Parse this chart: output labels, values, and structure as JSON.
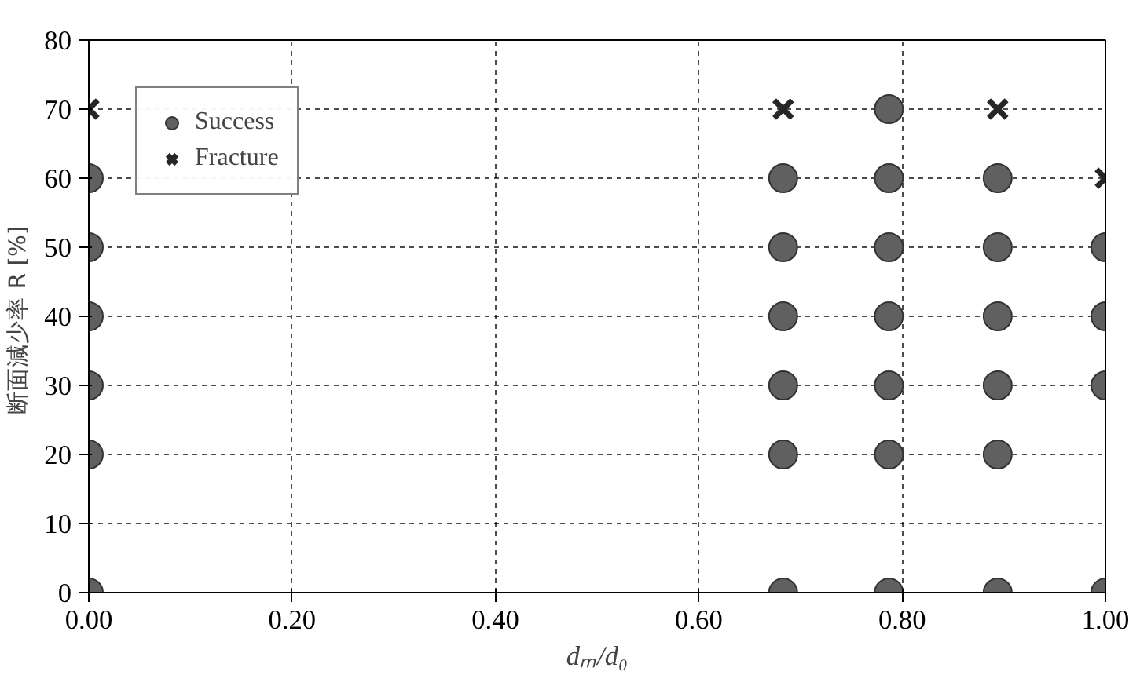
{
  "chart_data": {
    "type": "scatter",
    "xlabel": "dₘ/d₀",
    "ylabel": "断面減少率  R [%]",
    "xlim": [
      0,
      1
    ],
    "ylim": [
      0,
      80
    ],
    "xticks": [
      {
        "value": 0,
        "label": "0.00"
      },
      {
        "value": 0.2,
        "label": "0.20"
      },
      {
        "value": 0.4,
        "label": "0.40"
      },
      {
        "value": 0.6,
        "label": "0.60"
      },
      {
        "value": 0.8,
        "label": "0.80"
      },
      {
        "value": 1,
        "label": "1.00"
      }
    ],
    "yticks": [
      0,
      10,
      20,
      30,
      40,
      50,
      60,
      70,
      80
    ],
    "grid": true,
    "legend": "top left",
    "series": [
      {
        "name": "Success",
        "color": "#606060",
        "marker": "circle",
        "x": [
          0,
          0,
          0,
          0,
          0,
          0,
          0.683,
          0.683,
          0.683,
          0.683,
          0.683,
          0.683,
          0.787,
          0.787,
          0.787,
          0.787,
          0.787,
          0.787,
          0.787,
          0.894,
          0.894,
          0.894,
          0.894,
          0.894,
          0.894,
          1,
          1,
          1,
          1
        ],
        "values": [
          0,
          20,
          30,
          40,
          50,
          60,
          0,
          20,
          30,
          40,
          50,
          60,
          0,
          20,
          30,
          40,
          50,
          60,
          70,
          0,
          20,
          30,
          40,
          50,
          60,
          0,
          30,
          40,
          50
        ]
      },
      {
        "name": "Fracture",
        "color": "#262626",
        "marker": "cross",
        "x": [
          0,
          0.683,
          0.894,
          1
        ],
        "values": [
          70,
          70,
          70,
          60
        ]
      }
    ]
  }
}
